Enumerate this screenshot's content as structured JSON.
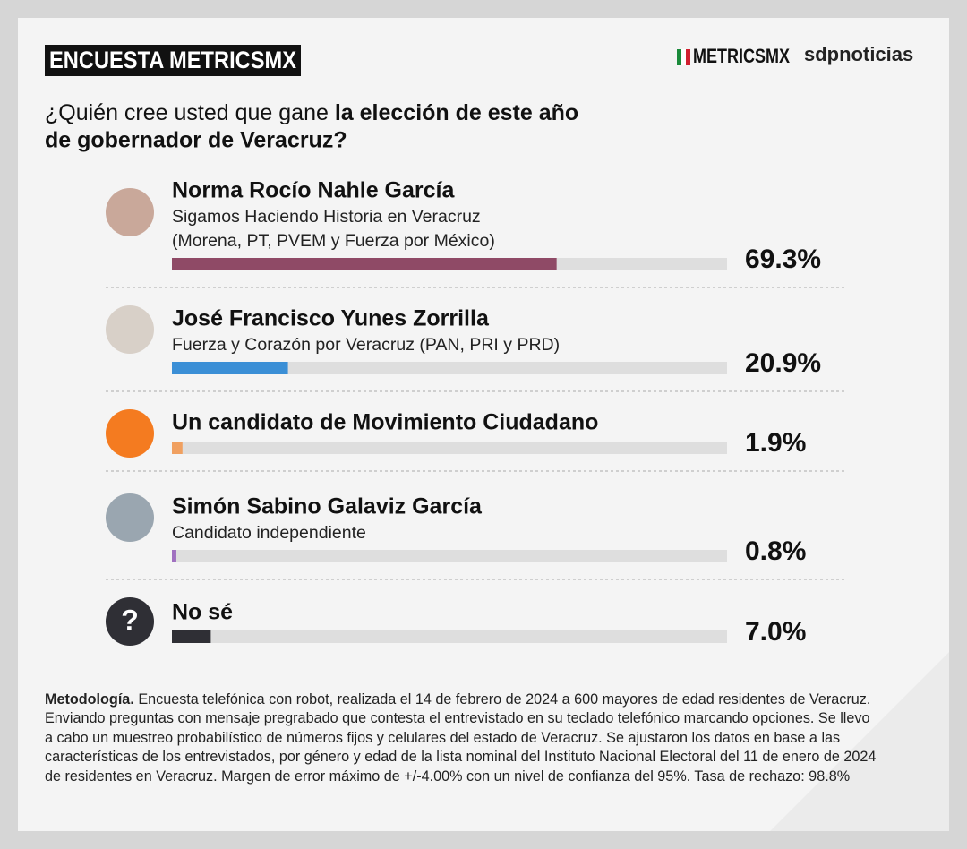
{
  "chart_data": {
    "type": "bar",
    "orientation": "horizontal",
    "header": "ENCUESTA METRICSMX",
    "logos": [
      "METRICSMX",
      "sdpnoticias"
    ],
    "title_lead": "¿Quién cree usted que gane",
    "title_bold": [
      "la elección de este año",
      "de gobernador de Veracruz?"
    ],
    "categories": [
      "Norma Rocío Nahle García",
      "José Francisco Yunes Zorrilla",
      "Un candidato de Movimiento Ciudadano",
      "Simón Sabino Galaviz García",
      "No sé"
    ],
    "descriptions": [
      [
        "Sigamos Haciendo Historia en Veracruz",
        "(Morena, PT, PVEM y Fuerza por México)"
      ],
      [
        "Fuerza y Corazón por Veracruz (PAN, PRI y PRD)"
      ],
      [],
      [
        "Candidato independiente"
      ],
      []
    ],
    "values": [
      69.3,
      20.9,
      1.9,
      0.8,
      7.0
    ],
    "value_labels": [
      "69.3%",
      "20.9%",
      "1.9%",
      "0.8%",
      "7.0%"
    ],
    "colors": [
      "#8f4a66",
      "#3b8fd6",
      "#f0a060",
      "#a070c0",
      "#2f2f35"
    ],
    "unknown_icon": "?",
    "xlim": [
      0,
      100
    ],
    "methodology_label": "Metodología.",
    "methodology": "Encuesta telefónica con robot, realizada el 14 de febrero de 2024 a 600 mayores de edad residentes de Veracruz. Enviando preguntas con mensaje pregrabado que contesta el entrevistado en su teclado telefónico marcando opciones. Se llevo a cabo un muestreo probabilístico de números fijos y celulares del estado de Veracruz. Se ajustaron los datos en base a las características de los entrevistados, por género y edad de la lista nominal del Instituto Nacional Electoral del 11 de enero de 2024 de residentes en Veracruz. Margen de error máximo de +/-4.00% con un nivel de confianza del 95%. Tasa de rechazo: 98.8%"
  }
}
